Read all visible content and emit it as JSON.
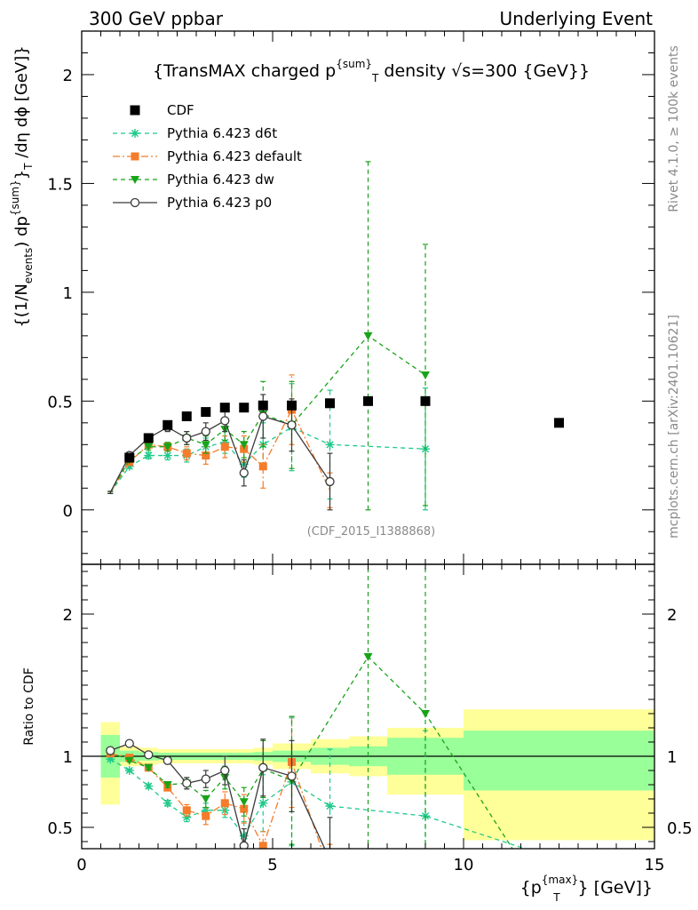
{
  "header": {
    "left": "300 GeV ppbar",
    "right": "Underlying Event"
  },
  "side_labels": {
    "rivet": "Rivet 4.1.0, ≥ 100k events",
    "mcplots": "mcplots.cern.ch [arXiv:2401.10621]"
  },
  "colors": {
    "cdf": "#000000",
    "d6t": "#1ec98a",
    "default": "#f47c2a",
    "dw": "#19a319",
    "p0": "#3a3a3a",
    "band_outer": "#ffff99",
    "band_inner": "#99ff99"
  },
  "chart_data": [
    {
      "type": "scatter",
      "title": "{TransMAX charged p^{sum}_T density √s=300 {GeV}}",
      "title_parts": {
        "pre": "{TransMAX charged p",
        "sup": "{sum}",
        "sub": "T",
        "post": " density √s=300 {GeV}}"
      },
      "ylabel": "{(1/N_{events}) dp^{sum}_T /dη  dϕ [GeV]}",
      "ylabel_parts": {
        "a": "{(1/N",
        "a_sub": "events",
        "b": ") dp",
        "b_sup": "{sum}",
        "c": "}",
        "c_sub": "T",
        "d": " /dη  dϕ [GeV]}"
      },
      "watermark": "(CDF_2015_I1388868)",
      "xlim": [
        0,
        15
      ],
      "ylim": [
        -0.25,
        2.2
      ],
      "yticks": [
        0,
        0.5,
        1,
        1.5,
        2
      ],
      "ytick_labels": [
        "0",
        "0.5",
        "1",
        "1.5",
        "2"
      ],
      "legend_position": "top-left",
      "series": [
        {
          "key": "cdf",
          "name": "CDF",
          "x": [
            0.75,
            1.25,
            1.75,
            2.25,
            2.75,
            3.25,
            3.75,
            4.25,
            4.75,
            5.5,
            6.5,
            7.5,
            9.0,
            12.5
          ],
          "y": [
            0.08,
            0.24,
            0.33,
            0.39,
            0.43,
            0.45,
            0.47,
            0.47,
            0.48,
            0.48,
            0.49,
            0.5,
            0.5,
            0.4
          ]
        },
        {
          "key": "d6t",
          "name": "Pythia 6.423 d6t",
          "x": [
            0.75,
            1.25,
            1.75,
            2.25,
            2.75,
            3.25,
            3.75,
            4.25,
            4.75,
            5.5,
            6.5,
            9.0
          ],
          "y": [
            0.08,
            0.2,
            0.25,
            0.25,
            0.25,
            0.29,
            0.31,
            0.21,
            0.3,
            0.38,
            0.3,
            0.28
          ],
          "err": [
            0.005,
            0.01,
            0.015,
            0.02,
            0.03,
            0.04,
            0.05,
            0.06,
            0.1,
            0.2,
            0.25,
            0.28
          ]
        },
        {
          "key": "default",
          "name": "Pythia 6.423 default",
          "x": [
            0.75,
            1.25,
            1.75,
            2.25,
            2.75,
            3.25,
            3.75,
            4.25,
            4.75,
            5.5,
            6.5
          ],
          "y": [
            0.08,
            0.22,
            0.3,
            0.29,
            0.26,
            0.25,
            0.29,
            0.28,
            0.2,
            0.46,
            0.09
          ],
          "err": [
            0.005,
            0.01,
            0.015,
            0.02,
            0.03,
            0.04,
            0.05,
            0.06,
            0.1,
            0.16,
            0.08
          ]
        },
        {
          "key": "dw",
          "name": "Pythia 6.423 dw",
          "x": [
            0.75,
            1.25,
            1.75,
            2.25,
            2.75,
            3.25,
            3.75,
            4.25,
            4.75,
            5.5,
            7.5,
            9.0
          ],
          "y": [
            0.08,
            0.23,
            0.29,
            0.29,
            0.33,
            0.3,
            0.37,
            0.3,
            0.44,
            0.39,
            0.8,
            0.62
          ],
          "err": [
            0.005,
            0.01,
            0.015,
            0.02,
            0.03,
            0.04,
            0.05,
            0.06,
            0.15,
            0.2,
            0.8,
            0.6
          ]
        },
        {
          "key": "p0",
          "name": "Pythia 6.423 p0",
          "x": [
            0.75,
            1.25,
            1.75,
            2.25,
            2.75,
            3.25,
            3.75,
            4.25,
            4.75,
            5.5,
            6.5
          ],
          "y": [
            0.08,
            0.25,
            0.33,
            0.38,
            0.33,
            0.36,
            0.41,
            0.17,
            0.43,
            0.39,
            0.13
          ],
          "err": [
            0.005,
            0.01,
            0.015,
            0.02,
            0.03,
            0.04,
            0.05,
            0.06,
            0.1,
            0.12,
            0.13
          ]
        }
      ]
    },
    {
      "type": "line",
      "title": "",
      "xlabel": "{p_{T}^{max}} [GeV]}",
      "xlabel_parts": {
        "pre": "{p",
        "sup": "{max}",
        "sub": "T",
        "post": "} [GeV]}"
      },
      "ylabel": "Ratio to CDF",
      "xlim": [
        0,
        15
      ],
      "ylim": [
        0.35,
        2.35
      ],
      "xticks": [
        0,
        5,
        10,
        15
      ],
      "xtick_labels": [
        "0",
        "5",
        "10",
        "15"
      ],
      "yticks": [
        0.5,
        1,
        2
      ],
      "ytick_labels": [
        "0.5",
        "1",
        "2"
      ],
      "reference_line": 1,
      "bands": [
        {
          "x0": 0.5,
          "x1": 1.0,
          "inner": [
            0.85,
            1.15
          ],
          "outer": [
            0.66,
            1.24
          ]
        },
        {
          "x0": 1.0,
          "x1": 1.5,
          "inner": [
            0.96,
            1.04
          ],
          "outer": [
            0.93,
            1.07
          ]
        },
        {
          "x0": 1.5,
          "x1": 2.0,
          "inner": [
            0.97,
            1.03
          ],
          "outer": [
            0.94,
            1.06
          ]
        },
        {
          "x0": 2.0,
          "x1": 2.5,
          "inner": [
            0.975,
            1.025
          ],
          "outer": [
            0.95,
            1.05
          ]
        },
        {
          "x0": 2.5,
          "x1": 3.0,
          "inner": [
            0.975,
            1.025
          ],
          "outer": [
            0.95,
            1.05
          ]
        },
        {
          "x0": 3.0,
          "x1": 3.5,
          "inner": [
            0.975,
            1.025
          ],
          "outer": [
            0.95,
            1.05
          ]
        },
        {
          "x0": 3.5,
          "x1": 4.0,
          "inner": [
            0.975,
            1.025
          ],
          "outer": [
            0.95,
            1.05
          ]
        },
        {
          "x0": 4.0,
          "x1": 4.5,
          "inner": [
            0.975,
            1.025
          ],
          "outer": [
            0.95,
            1.05
          ]
        },
        {
          "x0": 4.5,
          "x1": 5.0,
          "inner": [
            0.97,
            1.03
          ],
          "outer": [
            0.94,
            1.06
          ]
        },
        {
          "x0": 5.0,
          "x1": 6.0,
          "inner": [
            0.96,
            1.04
          ],
          "outer": [
            0.91,
            1.09
          ]
        },
        {
          "x0": 6.0,
          "x1": 7.0,
          "inner": [
            0.94,
            1.06
          ],
          "outer": [
            0.88,
            1.12
          ]
        },
        {
          "x0": 7.0,
          "x1": 8.0,
          "inner": [
            0.93,
            1.07
          ],
          "outer": [
            0.86,
            1.14
          ]
        },
        {
          "x0": 8.0,
          "x1": 10.0,
          "inner": [
            0.87,
            1.13
          ],
          "outer": [
            0.73,
            1.2
          ]
        },
        {
          "x0": 10.0,
          "x1": 15.0,
          "inner": [
            0.76,
            1.18
          ],
          "outer": [
            0.41,
            1.33
          ]
        }
      ],
      "series": [
        {
          "key": "d6t",
          "name": "Pythia 6.423 d6t",
          "x": [
            0.75,
            1.25,
            1.75,
            2.25,
            2.75,
            3.25,
            3.75,
            4.25,
            4.75,
            5.5,
            6.5,
            9.0,
            15.0
          ],
          "y": [
            0.98,
            0.9,
            0.79,
            0.67,
            0.57,
            0.62,
            0.62,
            0.44,
            0.67,
            0.82,
            0.65,
            0.58,
            0.05
          ],
          "err": [
            0.01,
            0.01,
            0.015,
            0.02,
            0.03,
            0.05,
            0.05,
            0.1,
            0.2,
            0.45,
            0.4,
            0.6,
            0
          ]
        },
        {
          "key": "default",
          "name": "Pythia 6.423 default",
          "x": [
            0.75,
            1.25,
            1.75,
            2.25,
            2.75,
            3.25,
            3.75,
            4.25,
            4.75,
            5.5,
            6.5
          ],
          "y": [
            1.02,
            0.99,
            0.92,
            0.78,
            0.62,
            0.58,
            0.67,
            0.63,
            0.37,
            0.96,
            0.18
          ],
          "err": [
            0.01,
            0.01,
            0.015,
            0.02,
            0.04,
            0.06,
            0.08,
            0.1,
            0.1,
            0.32,
            0.2
          ]
        },
        {
          "key": "dw",
          "name": "Pythia 6.423 dw",
          "x": [
            0.75,
            1.25,
            1.75,
            2.25,
            2.75,
            3.25,
            3.75,
            4.25,
            4.75,
            5.5,
            7.5,
            9.0,
            12.0
          ],
          "y": [
            1.03,
            0.97,
            0.92,
            0.8,
            0.81,
            0.7,
            0.85,
            0.68,
            0.91,
            0.83,
            1.7,
            1.3,
            0.05
          ],
          "err": [
            0.01,
            0.01,
            0.015,
            0.02,
            0.04,
            0.06,
            0.08,
            0.1,
            0.2,
            0.45,
            1.6,
            1.2,
            0
          ]
        },
        {
          "key": "p0",
          "name": "Pythia 6.423 p0",
          "x": [
            0.75,
            1.25,
            1.75,
            2.25,
            2.75,
            3.25,
            3.75,
            4.25,
            4.75,
            5.5,
            6.5
          ],
          "y": [
            1.04,
            1.09,
            1.01,
            0.97,
            0.81,
            0.84,
            0.9,
            0.37,
            0.92,
            0.86,
            0.27
          ],
          "err": [
            0.01,
            0.01,
            0.015,
            0.02,
            0.04,
            0.06,
            0.1,
            0.12,
            0.2,
            0.25,
            0.3
          ]
        }
      ]
    }
  ]
}
